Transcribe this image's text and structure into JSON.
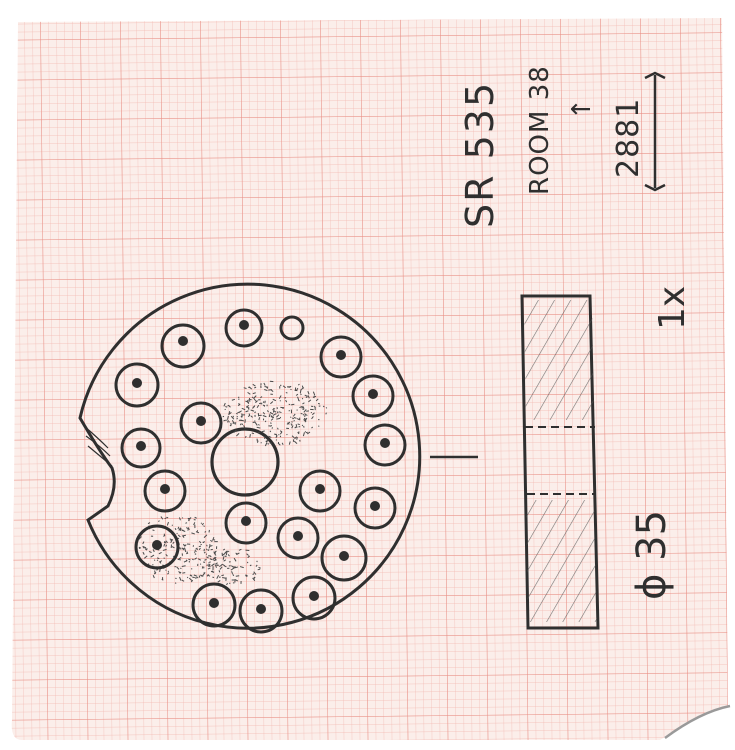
{
  "sheet": {
    "paper_color": "#fbeeea",
    "grid_minor_color": "#f2b8b0",
    "grid_major_color": "#e88e84",
    "ink_color": "#2f2f2f"
  },
  "notes": {
    "part_code": "SR 535",
    "room": "ROOM 38",
    "count": "2881",
    "quantity": "1x",
    "diameter": "ϕ 35",
    "arrow_symbol": "↑"
  },
  "drawing": {
    "front_view": {
      "hole_count": 18,
      "has_center_bore": true,
      "has_notch": true
    },
    "side_view": {
      "hatched": true
    }
  }
}
